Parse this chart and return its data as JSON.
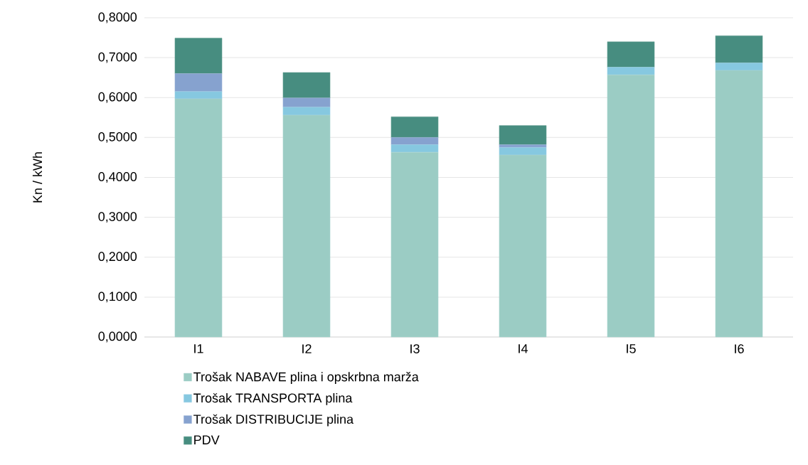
{
  "chart_data": {
    "type": "bar",
    "stacked": true,
    "ylabel": "Kn / kWh",
    "categories": [
      "I1",
      "I2",
      "I3",
      "I4",
      "I5",
      "I6"
    ],
    "series": [
      {
        "name": "Trošak NABAVE plina i opskrbna marža",
        "color": "#9bccc4",
        "values": [
          0.597,
          0.556,
          0.463,
          0.456,
          0.657,
          0.668
        ]
      },
      {
        "name": "Trošak TRANSPORTA plina",
        "color": "#86c8e0",
        "values": [
          0.018,
          0.02,
          0.019,
          0.019,
          0.019,
          0.019
        ]
      },
      {
        "name": "Trošak DISTRIBUCIJE plina",
        "color": "#86a2cf",
        "values": [
          0.045,
          0.023,
          0.018,
          0.007,
          0,
          0
        ]
      },
      {
        "name": "PDV",
        "color": "#478d80",
        "values": [
          0.089,
          0.064,
          0.052,
          0.048,
          0.064,
          0.068
        ]
      }
    ],
    "ylim": [
      0,
      0.8
    ],
    "yticks": [
      {
        "value": 0,
        "label": "0,0000"
      },
      {
        "value": 0.1,
        "label": "0,1000"
      },
      {
        "value": 0.2,
        "label": "0,2000"
      },
      {
        "value": 0.3,
        "label": "0,3000"
      },
      {
        "value": 0.4,
        "label": "0,4000"
      },
      {
        "value": 0.5,
        "label": "0,5000"
      },
      {
        "value": 0.6,
        "label": "0,6000"
      },
      {
        "value": 0.7,
        "label": "0,7000"
      },
      {
        "value": 0.8,
        "label": "0,8000"
      }
    ],
    "grid": "y",
    "legend": "bottom"
  }
}
